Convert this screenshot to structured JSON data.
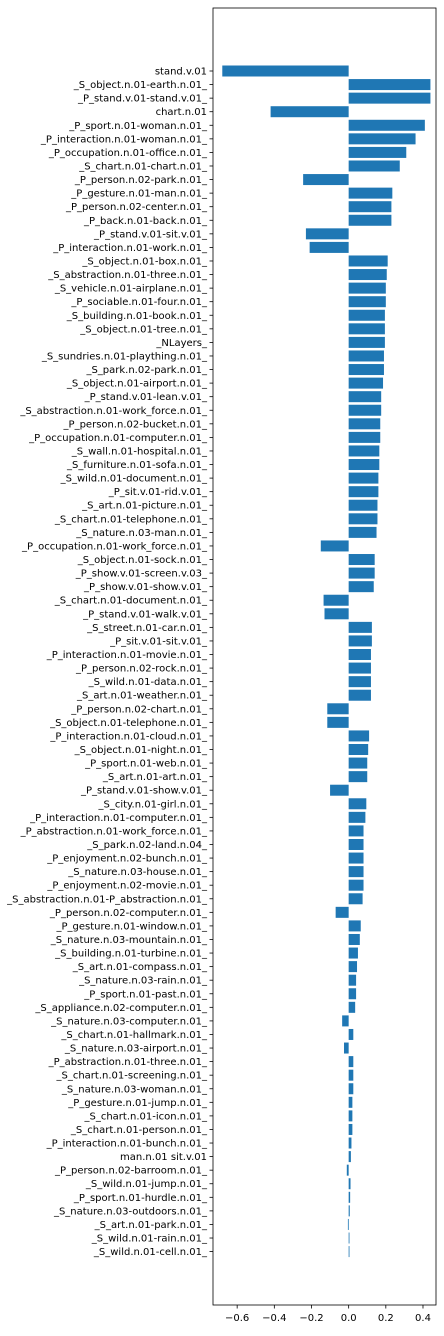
{
  "chart_data": {
    "type": "bar",
    "orientation": "horizontal",
    "title": "",
    "xlabel": "",
    "ylabel": "",
    "xlim": [
      -0.73,
      0.47
    ],
    "xticks": [
      -0.6,
      -0.4,
      -0.2,
      0.0,
      0.2,
      0.4
    ],
    "xtick_labels": [
      "−0.6",
      "−0.4",
      "−0.2",
      "0.0",
      "0.2",
      "0.4"
    ],
    "grid": false,
    "bar_color": "#1f77b4",
    "categories": [
      "stand.v.01",
      "_S_object.n.01-earth.n.01_",
      "_P_stand.v.01-stand.v.01_",
      "chart.n.01",
      "_P_sport.n.01-woman.n.01_",
      "_P_interaction.n.01-woman.n.01_",
      "_P_occupation.n.01-office.n.01_",
      "_S_chart.n.01-chart.n.01_",
      "_P_person.n.02-park.n.01_",
      "_P_gesture.n.01-man.n.01_",
      "_P_person.n.02-center.n.01_",
      "_P_back.n.01-back.n.01_",
      "_P_stand.v.01-sit.v.01_",
      "_P_interaction.n.01-work.n.01_",
      "_S_object.n.01-box.n.01_",
      "_S_abstraction.n.01-three.n.01_",
      "_S_vehicle.n.01-airplane.n.01_",
      "_P_sociable.n.01-four.n.01_",
      "_S_building.n.01-book.n.01_",
      "_S_object.n.01-tree.n.01_",
      "_NLayers_",
      "_S_sundries.n.01-plaything.n.01_",
      "_S_park.n.02-park.n.01_",
      "_S_object.n.01-airport.n.01_",
      "_P_stand.v.01-lean.v.01_",
      "_S_abstraction.n.01-work_force.n.01_",
      "_P_person.n.02-bucket.n.01_",
      "_P_occupation.n.01-computer.n.01_",
      "_S_wall.n.01-hospital.n.01_",
      "_S_furniture.n.01-sofa.n.01_",
      "_S_wild.n.01-document.n.01_",
      "_P_sit.v.01-rid.v.01_",
      "_S_art.n.01-picture.n.01_",
      "_S_chart.n.01-telephone.n.01_",
      "_S_nature.n.03-man.n.01_",
      "_P_occupation.n.01-work_force.n.01_",
      "_S_object.n.01-sock.n.01_",
      "_P_show.v.01-screen.v.03_",
      "_P_show.v.01-show.v.01_",
      "_S_chart.n.01-document.n.01_",
      "_P_stand.v.01-walk.v.01_",
      "_S_street.n.01-car.n.01_",
      "_P_sit.v.01-sit.v.01_",
      "_P_interaction.n.01-movie.n.01_",
      "_P_person.n.02-rock.n.01_",
      "_S_wild.n.01-data.n.01_",
      "_S_art.n.01-weather.n.01_",
      "_P_person.n.02-chart.n.01_",
      "_S_object.n.01-telephone.n.01_",
      "_P_interaction.n.01-cloud.n.01_",
      "_S_object.n.01-night.n.01_",
      "_P_sport.n.01-web.n.01_",
      "_S_art.n.01-art.n.01_",
      "_P_stand.v.01-show.v.01_",
      "_S_city.n.01-girl.n.01_",
      "_P_interaction.n.01-computer.n.01_",
      "_P_abstraction.n.01-work_force.n.01_",
      "_S_park.n.02-land.n.04_",
      "_P_enjoyment.n.02-bunch.n.01_",
      "_S_nature.n.03-house.n.01_",
      "_P_enjoyment.n.02-movie.n.01_",
      "_S_abstraction.n.01-P_abstraction.n.01_",
      "_P_person.n.02-computer.n.01_",
      "_P_gesture.n.01-window.n.01_",
      "_S_nature.n.03-mountain.n.01_",
      "_S_building.n.01-turbine.n.01_",
      "_S_art.n.01-compass.n.01_",
      "_S_nature.n.03-rain.n.01_",
      "_P_sport.n.01-past.n.01_",
      "_S_appliance.n.02-computer.n.01_",
      "_S_nature.n.03-computer.n.01_",
      "_S_chart.n.01-hallmark.n.01_",
      "_S_nature.n.03-airport.n.01_",
      "_P_abstraction.n.01-three.n.01_",
      "_S_chart.n.01-screening.n.01_",
      "_S_nature.n.03-woman.n.01_",
      "_P_gesture.n.01-jump.n.01_",
      "_S_chart.n.01-icon.n.01_",
      "_S_chart.n.01-person.n.01_",
      "_P_interaction.n.01-bunch.n.01_",
      "man.n.01 sit.v.01",
      "_P_person.n.02-barroom.n.01_",
      "_S_wild.n.01-jump.n.01_",
      "_P_sport.n.01-hurdle.n.01_",
      "_S_nature.n.03-outdoors.n.01_",
      "_S_art.n.01-park.n.01_",
      "_S_wild.n.01-rain.n.01_",
      "_S_wild.n.01-cell.n.01_"
    ],
    "values": [
      -0.68,
      0.44,
      0.44,
      -0.42,
      0.41,
      0.36,
      0.31,
      0.275,
      -0.245,
      0.235,
      0.23,
      0.23,
      -0.23,
      -0.21,
      0.21,
      0.205,
      0.2,
      0.2,
      0.195,
      0.195,
      0.195,
      0.19,
      0.19,
      0.185,
      0.175,
      0.175,
      0.17,
      0.17,
      0.165,
      0.165,
      0.16,
      0.16,
      0.155,
      0.155,
      0.15,
      -0.15,
      0.14,
      0.14,
      0.135,
      -0.135,
      -0.13,
      0.125,
      0.125,
      0.12,
      0.12,
      0.12,
      0.12,
      -0.115,
      -0.115,
      0.11,
      0.105,
      0.1,
      0.1,
      -0.1,
      0.095,
      0.09,
      0.08,
      0.08,
      0.08,
      0.08,
      0.08,
      0.075,
      -0.07,
      0.065,
      0.06,
      0.05,
      0.045,
      0.04,
      0.04,
      0.035,
      -0.035,
      0.025,
      -0.025,
      0.025,
      0.025,
      0.025,
      0.02,
      0.02,
      0.02,
      0.015,
      0.012,
      -0.01,
      0.01,
      0.008,
      0.006,
      -0.004,
      0.004,
      0.002
    ]
  }
}
